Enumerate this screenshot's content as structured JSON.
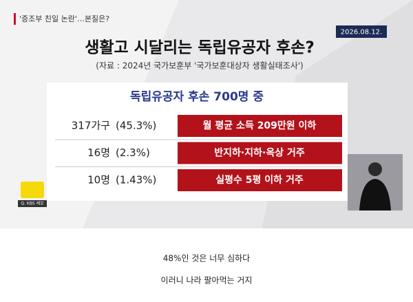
{
  "header": {
    "tag": "'증조부 친일 논란'…본질은?",
    "date": "2026.08.12.",
    "title": "생활고 시달리는 독립유공자 후손?",
    "source": "(자료 : 2024년 국가보훈부 '국가보훈대상자 생활실태조사')"
  },
  "table": {
    "title": "독립유공자 후손 700명 중",
    "rows": [
      [
        "317가구",
        "(45.3%)",
        "월 평균 소득 209만원 이하"
      ],
      [
        "16명",
        "(2.3%)",
        "반지하·지하·옥상 거주"
      ],
      [
        "10명",
        "(1.43%)",
        "실평수 5평 이하 거주"
      ]
    ]
  },
  "logo": {
    "label": "Q. KBS 제보"
  },
  "captions": [
    "48%인 것은 너무 심하다",
    "이러니 나라 팔아먹는 거지"
  ]
}
